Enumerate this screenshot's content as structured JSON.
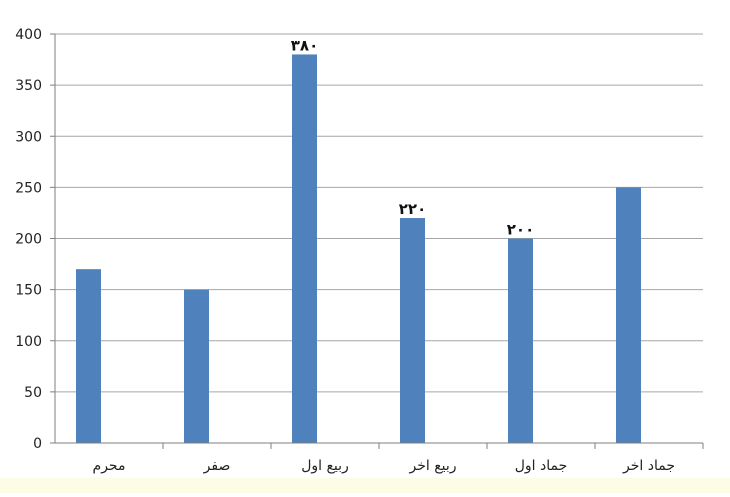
{
  "chart_data": {
    "type": "bar",
    "categories": [
      "محرم",
      "صفر",
      "ربيع اول",
      "ربيع اخر",
      "جماد اول",
      "جماد اخر"
    ],
    "values": [
      170,
      150,
      380,
      220,
      200,
      250
    ],
    "data_labels": [
      "",
      "",
      "۳۸۰",
      "۲۲۰",
      "۲۰۰",
      ""
    ],
    "yticks": [
      "0",
      "50",
      "100",
      "150",
      "200",
      "250",
      "300",
      "350",
      "400"
    ],
    "ylim": [
      0,
      400
    ],
    "title": "",
    "xlabel": "",
    "ylabel": "",
    "grid": true,
    "legend": "none",
    "bar_color": "#4f81bd",
    "gridline_color": "#a6a6a6"
  }
}
